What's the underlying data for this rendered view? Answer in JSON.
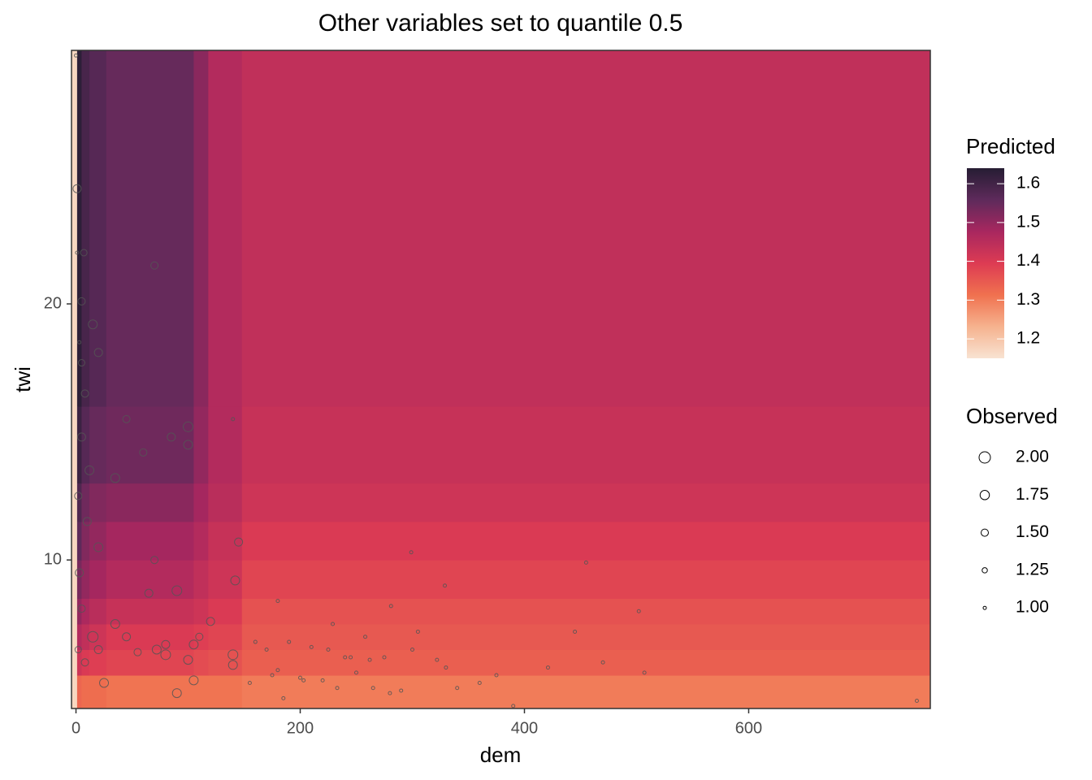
{
  "chart_data": {
    "type": "heatmap",
    "title": "Other variables set to quantile 0.5",
    "x_label": "dem",
    "y_label": "twi",
    "xlim": [
      -4,
      762
    ],
    "ylim": [
      4.2,
      29.9
    ],
    "xticks": [
      0,
      200,
      400,
      600
    ],
    "yticks": [
      10,
      20
    ],
    "x_edges": [
      -4,
      1,
      5,
      12,
      27,
      105,
      118,
      148,
      762
    ],
    "y_edges": [
      4.2,
      5.5,
      6.5,
      7.5,
      8.5,
      10,
      11.5,
      13,
      16,
      29.9
    ],
    "z": [
      [
        1.17,
        1.33,
        1.32,
        1.32,
        1.31,
        1.31,
        1.31,
        1.3
      ],
      [
        1.17,
        1.42,
        1.4,
        1.39,
        1.38,
        1.37,
        1.36,
        1.34
      ],
      [
        1.17,
        1.46,
        1.44,
        1.42,
        1.4,
        1.39,
        1.38,
        1.35
      ],
      [
        1.17,
        1.5,
        1.47,
        1.45,
        1.43,
        1.42,
        1.4,
        1.36
      ],
      [
        1.17,
        1.53,
        1.5,
        1.48,
        1.46,
        1.44,
        1.42,
        1.38
      ],
      [
        1.17,
        1.56,
        1.52,
        1.5,
        1.48,
        1.46,
        1.43,
        1.4
      ],
      [
        1.17,
        1.58,
        1.54,
        1.52,
        1.51,
        1.48,
        1.45,
        1.42
      ],
      [
        1.17,
        1.61,
        1.57,
        1.55,
        1.54,
        1.5,
        1.46,
        1.43
      ],
      [
        1.17,
        1.63,
        1.59,
        1.57,
        1.55,
        1.51,
        1.46,
        1.44
      ]
    ],
    "colorscale": [
      "#f8e3d2",
      "#f6b28e",
      "#f0714f",
      "#dd3b53",
      "#a8275f",
      "#5e2a5b",
      "#261d33"
    ],
    "fill_legend_title": "Predicted",
    "zlim": [
      1.15,
      1.64
    ],
    "zticks": [
      1.2,
      1.3,
      1.4,
      1.5,
      1.6
    ],
    "size_legend_title": "Observed",
    "size_lim": [
      1,
      2
    ],
    "size_breaks": [
      {
        "value": 2,
        "label": "2.00"
      },
      {
        "value": 1.75,
        "label": "1.75"
      },
      {
        "value": 1.5,
        "label": "1.50"
      },
      {
        "value": 1.25,
        "label": "1.25"
      },
      {
        "value": 1,
        "label": "1.00"
      }
    ],
    "point_color": "#555555",
    "points": {
      "x": [
        299,
        329,
        455,
        281,
        180,
        502,
        445,
        229,
        305,
        258,
        470,
        507,
        421,
        375,
        750,
        390,
        290,
        340,
        160,
        170,
        190,
        210,
        225,
        240,
        245,
        262,
        275,
        300,
        322,
        330,
        180,
        200,
        220,
        250,
        265,
        280,
        140,
        203,
        155,
        185,
        233,
        360,
        175,
        1,
        7,
        5,
        15,
        20,
        70,
        5,
        8,
        5,
        12,
        35,
        60,
        100,
        100,
        85,
        45,
        2,
        10,
        20,
        145,
        142,
        70,
        90,
        65,
        35,
        45,
        72,
        80,
        100,
        140,
        110,
        120,
        90,
        105,
        25,
        15,
        5,
        3,
        2,
        8,
        20,
        55,
        140,
        80,
        105,
        1,
        3,
        0
      ],
      "y": [
        10.3,
        9.0,
        9.9,
        8.2,
        8.4,
        8.0,
        7.2,
        7.5,
        7.2,
        7.0,
        6.0,
        5.6,
        5.8,
        5.5,
        4.5,
        4.3,
        4.9,
        5.0,
        6.8,
        6.5,
        6.8,
        6.6,
        6.5,
        6.2,
        6.2,
        6.1,
        6.2,
        6.5,
        6.1,
        5.8,
        5.7,
        5.4,
        5.3,
        5.6,
        5.0,
        4.8,
        15.5,
        5.3,
        5.2,
        4.6,
        5.0,
        5.2,
        5.5,
        24.5,
        22,
        20.1,
        19.2,
        18.1,
        21.5,
        17.7,
        16.5,
        14.8,
        13.5,
        13.2,
        14.2,
        15.2,
        14.5,
        14.8,
        15.5,
        12.5,
        11.5,
        10.5,
        10.7,
        9.2,
        10.0,
        8.8,
        8.7,
        7.5,
        7.0,
        6.5,
        6.3,
        6.1,
        5.9,
        7.0,
        7.6,
        4.8,
        5.3,
        5.2,
        7.0,
        8.1,
        9.5,
        6.5,
        6.0,
        6.5,
        6.4,
        6.3,
        6.7,
        6.7,
        22,
        18.5,
        29.7
      ],
      "size": [
        1,
        1,
        1,
        1,
        1,
        1,
        1,
        1,
        1,
        1,
        1,
        1,
        1,
        1,
        1,
        1,
        1,
        1,
        1,
        1,
        1,
        1,
        1,
        1,
        1,
        1,
        1,
        1,
        1,
        1,
        1,
        1,
        1,
        1,
        1,
        1,
        1,
        1,
        1,
        1,
        1,
        1,
        1,
        1.6,
        1.4,
        1.5,
        1.7,
        1.6,
        1.5,
        1.4,
        1.5,
        1.6,
        1.7,
        1.7,
        1.5,
        1.8,
        1.7,
        1.6,
        1.5,
        1.5,
        1.6,
        1.7,
        1.6,
        1.7,
        1.5,
        1.8,
        1.6,
        1.7,
        1.6,
        1.7,
        1.8,
        1.7,
        1.7,
        1.5,
        1.6,
        1.7,
        1.7,
        1.7,
        1.9,
        1.5,
        1.6,
        1.4,
        1.5,
        1.6,
        1.5,
        1.8,
        1.6,
        1.7,
        1,
        1,
        1
      ]
    }
  }
}
